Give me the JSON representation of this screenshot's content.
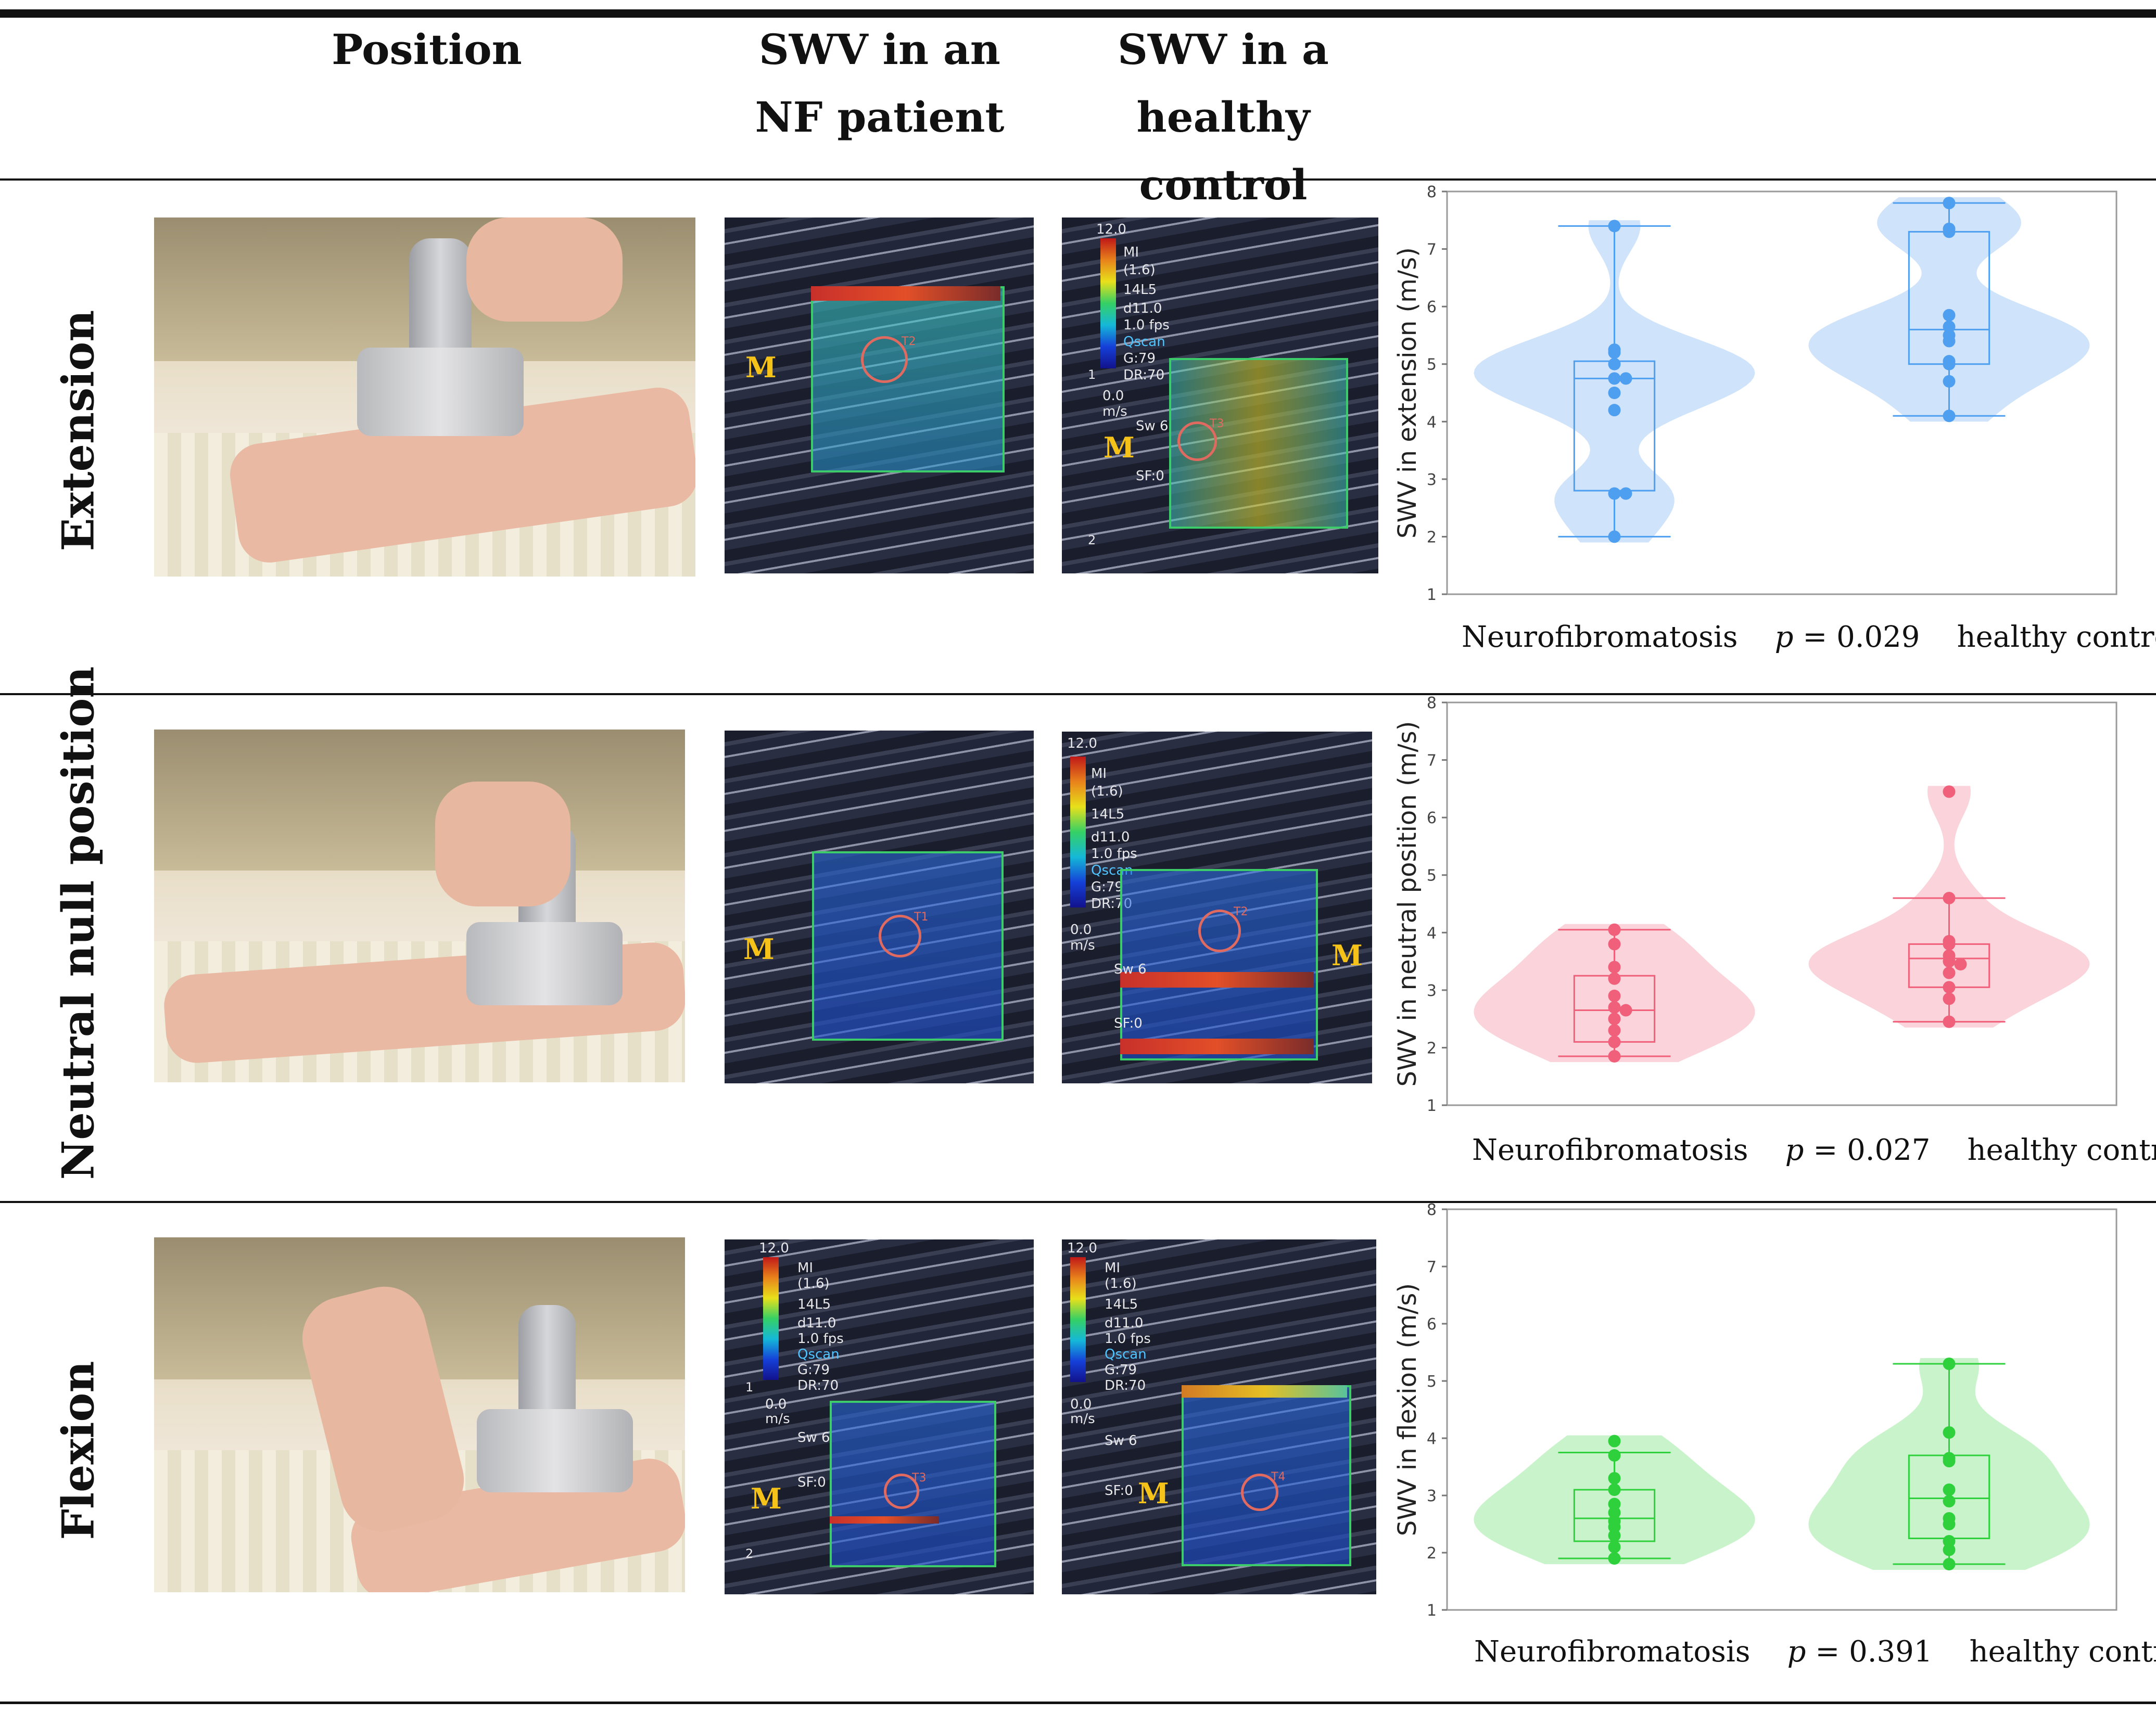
{
  "header": {
    "position": "Position",
    "nf_line1": "SWV in an",
    "nf_line2": "NF patient",
    "hc_line1": "SWV in a",
    "hc_line2": "healthy control"
  },
  "rows": [
    {
      "label": "Extension",
      "nf_image": {
        "m_label": "M",
        "roi_label": "T2"
      },
      "hc_image": {
        "scale_top": "12.0",
        "info_lines": [
          "MI",
          "(1.6)",
          "14L5",
          "d11.0",
          "1.0 fps",
          "Qscan",
          "G:79",
          "DR:70"
        ],
        "scale_bottom": "0.0",
        "scale_unit": "m/s",
        "sw": "Sw 6",
        "sf": "SF:0",
        "m_label": "M",
        "roi_label": "T3",
        "depth1": "1",
        "depth2": "2"
      },
      "caption": {
        "left": "Neurofibromatosis",
        "p_symbol": "p",
        "p_value": "= 0.029",
        "right": "healthy controls"
      }
    },
    {
      "label": "Neutral null position",
      "nf_image": {
        "m_label": "M",
        "roi_label": "T1"
      },
      "hc_image": {
        "scale_top": "12.0",
        "info_lines": [
          "MI",
          "(1.6)",
          "14L5",
          "d11.0",
          "1.0 fps",
          "Qscan",
          "G:79",
          "DR:70"
        ],
        "scale_bottom": "0.0",
        "scale_unit": "m/s",
        "sw": "Sw 6",
        "sf": "SF:0",
        "m_label": "M",
        "roi_label": "T2"
      },
      "caption": {
        "left": "Neurofibromatosis",
        "p_symbol": "p",
        "p_value": "= 0.027",
        "right": "healthy controls"
      }
    },
    {
      "label": "Flexion",
      "nf_image": {
        "scale_top": "12.0",
        "info_lines": [
          "MI",
          "(1.6)",
          "14L5",
          "d11.0",
          "1.0 fps",
          "Qscan",
          "G:79",
          "DR:70"
        ],
        "scale_bottom": "0.0",
        "scale_unit": "m/s",
        "sw": "Sw 6",
        "sf": "SF:0",
        "m_label": "M",
        "roi_label": "T3",
        "depth1": "1",
        "depth2": "2"
      },
      "hc_image": {
        "scale_top": "12.0",
        "info_lines": [
          "MI",
          "(1.6)",
          "14L5",
          "d11.0",
          "1.0 fps",
          "Qscan",
          "G:79",
          "DR:70"
        ],
        "scale_bottom": "0.0",
        "scale_unit": "m/s",
        "sw": "Sw 6",
        "sf": "SF:0",
        "m_label": "M",
        "roi_label": "T4"
      },
      "caption": {
        "left": "Neurofibromatosis",
        "p_symbol": "p",
        "p_value": "= 0.391",
        "right": "healthy controls"
      }
    }
  ],
  "chart_data": [
    {
      "type": "violin-box",
      "ylabel": "SWV in extension (m/s)",
      "ylim": [
        1,
        8
      ],
      "yticks": [
        1,
        2,
        3,
        4,
        5,
        6,
        7,
        8
      ],
      "color": "#4f9ff0",
      "fill": "#cfe3fb",
      "categories": [
        "Neurofibromatosis",
        "healthy controls"
      ],
      "series": [
        {
          "name": "Neurofibromatosis",
          "points": [
            7.4,
            5.25,
            5.2,
            5.0,
            4.75,
            4.75,
            4.5,
            4.2,
            2.75,
            2.75,
            2.0
          ],
          "box": {
            "whisker_low": 2.0,
            "q1": 2.8,
            "median": 4.75,
            "q3": 5.05,
            "whisker_high": 7.4
          }
        },
        {
          "name": "healthy controls",
          "points": [
            7.8,
            7.35,
            7.3,
            5.85,
            5.65,
            5.5,
            5.4,
            5.05,
            5.0,
            4.7,
            4.1
          ],
          "box": {
            "whisker_low": 4.1,
            "q1": 5.0,
            "median": 5.6,
            "q3": 7.3,
            "whisker_high": 7.8
          }
        }
      ]
    },
    {
      "type": "violin-box",
      "ylabel": "SWV in neutral position (m/s)",
      "ylim": [
        1,
        8
      ],
      "yticks": [
        1,
        2,
        3,
        4,
        5,
        6,
        7,
        8
      ],
      "color": "#f0607a",
      "fill": "#fbd3da",
      "categories": [
        "Neurofibromatosis",
        "healthy controls"
      ],
      "series": [
        {
          "name": "Neurofibromatosis",
          "points": [
            4.05,
            3.8,
            3.4,
            3.2,
            2.9,
            2.7,
            2.65,
            2.5,
            2.3,
            2.1,
            1.85
          ],
          "box": {
            "whisker_low": 1.85,
            "q1": 2.1,
            "median": 2.65,
            "q3": 3.25,
            "whisker_high": 4.05
          }
        },
        {
          "name": "healthy controls",
          "points": [
            6.45,
            4.6,
            3.85,
            3.8,
            3.6,
            3.5,
            3.45,
            3.3,
            3.05,
            2.85,
            2.45
          ],
          "box": {
            "whisker_low": 2.45,
            "q1": 3.05,
            "median": 3.55,
            "q3": 3.8,
            "whisker_high": 4.6
          }
        }
      ]
    },
    {
      "type": "violin-box",
      "ylabel": "SWV in flexion (m/s)",
      "ylim": [
        1,
        8
      ],
      "yticks": [
        1,
        2,
        3,
        4,
        5,
        6,
        7,
        8
      ],
      "color": "#2ed13c",
      "fill": "#c9f3cb",
      "categories": [
        "Neurofibromatosis",
        "healthy controls"
      ],
      "series": [
        {
          "name": "Neurofibromatosis",
          "points": [
            3.95,
            3.7,
            3.3,
            3.1,
            2.85,
            2.7,
            2.55,
            2.45,
            2.3,
            2.1,
            1.9
          ],
          "box": {
            "whisker_low": 1.9,
            "q1": 2.2,
            "median": 2.6,
            "q3": 3.1,
            "whisker_high": 3.75
          }
        },
        {
          "name": "healthy controls",
          "points": [
            5.3,
            4.1,
            3.65,
            3.6,
            3.1,
            2.9,
            2.6,
            2.5,
            2.2,
            2.05,
            1.8
          ],
          "box": {
            "whisker_low": 1.8,
            "q1": 2.25,
            "median": 2.95,
            "q3": 3.7,
            "whisker_high": 5.3
          }
        }
      ]
    }
  ]
}
